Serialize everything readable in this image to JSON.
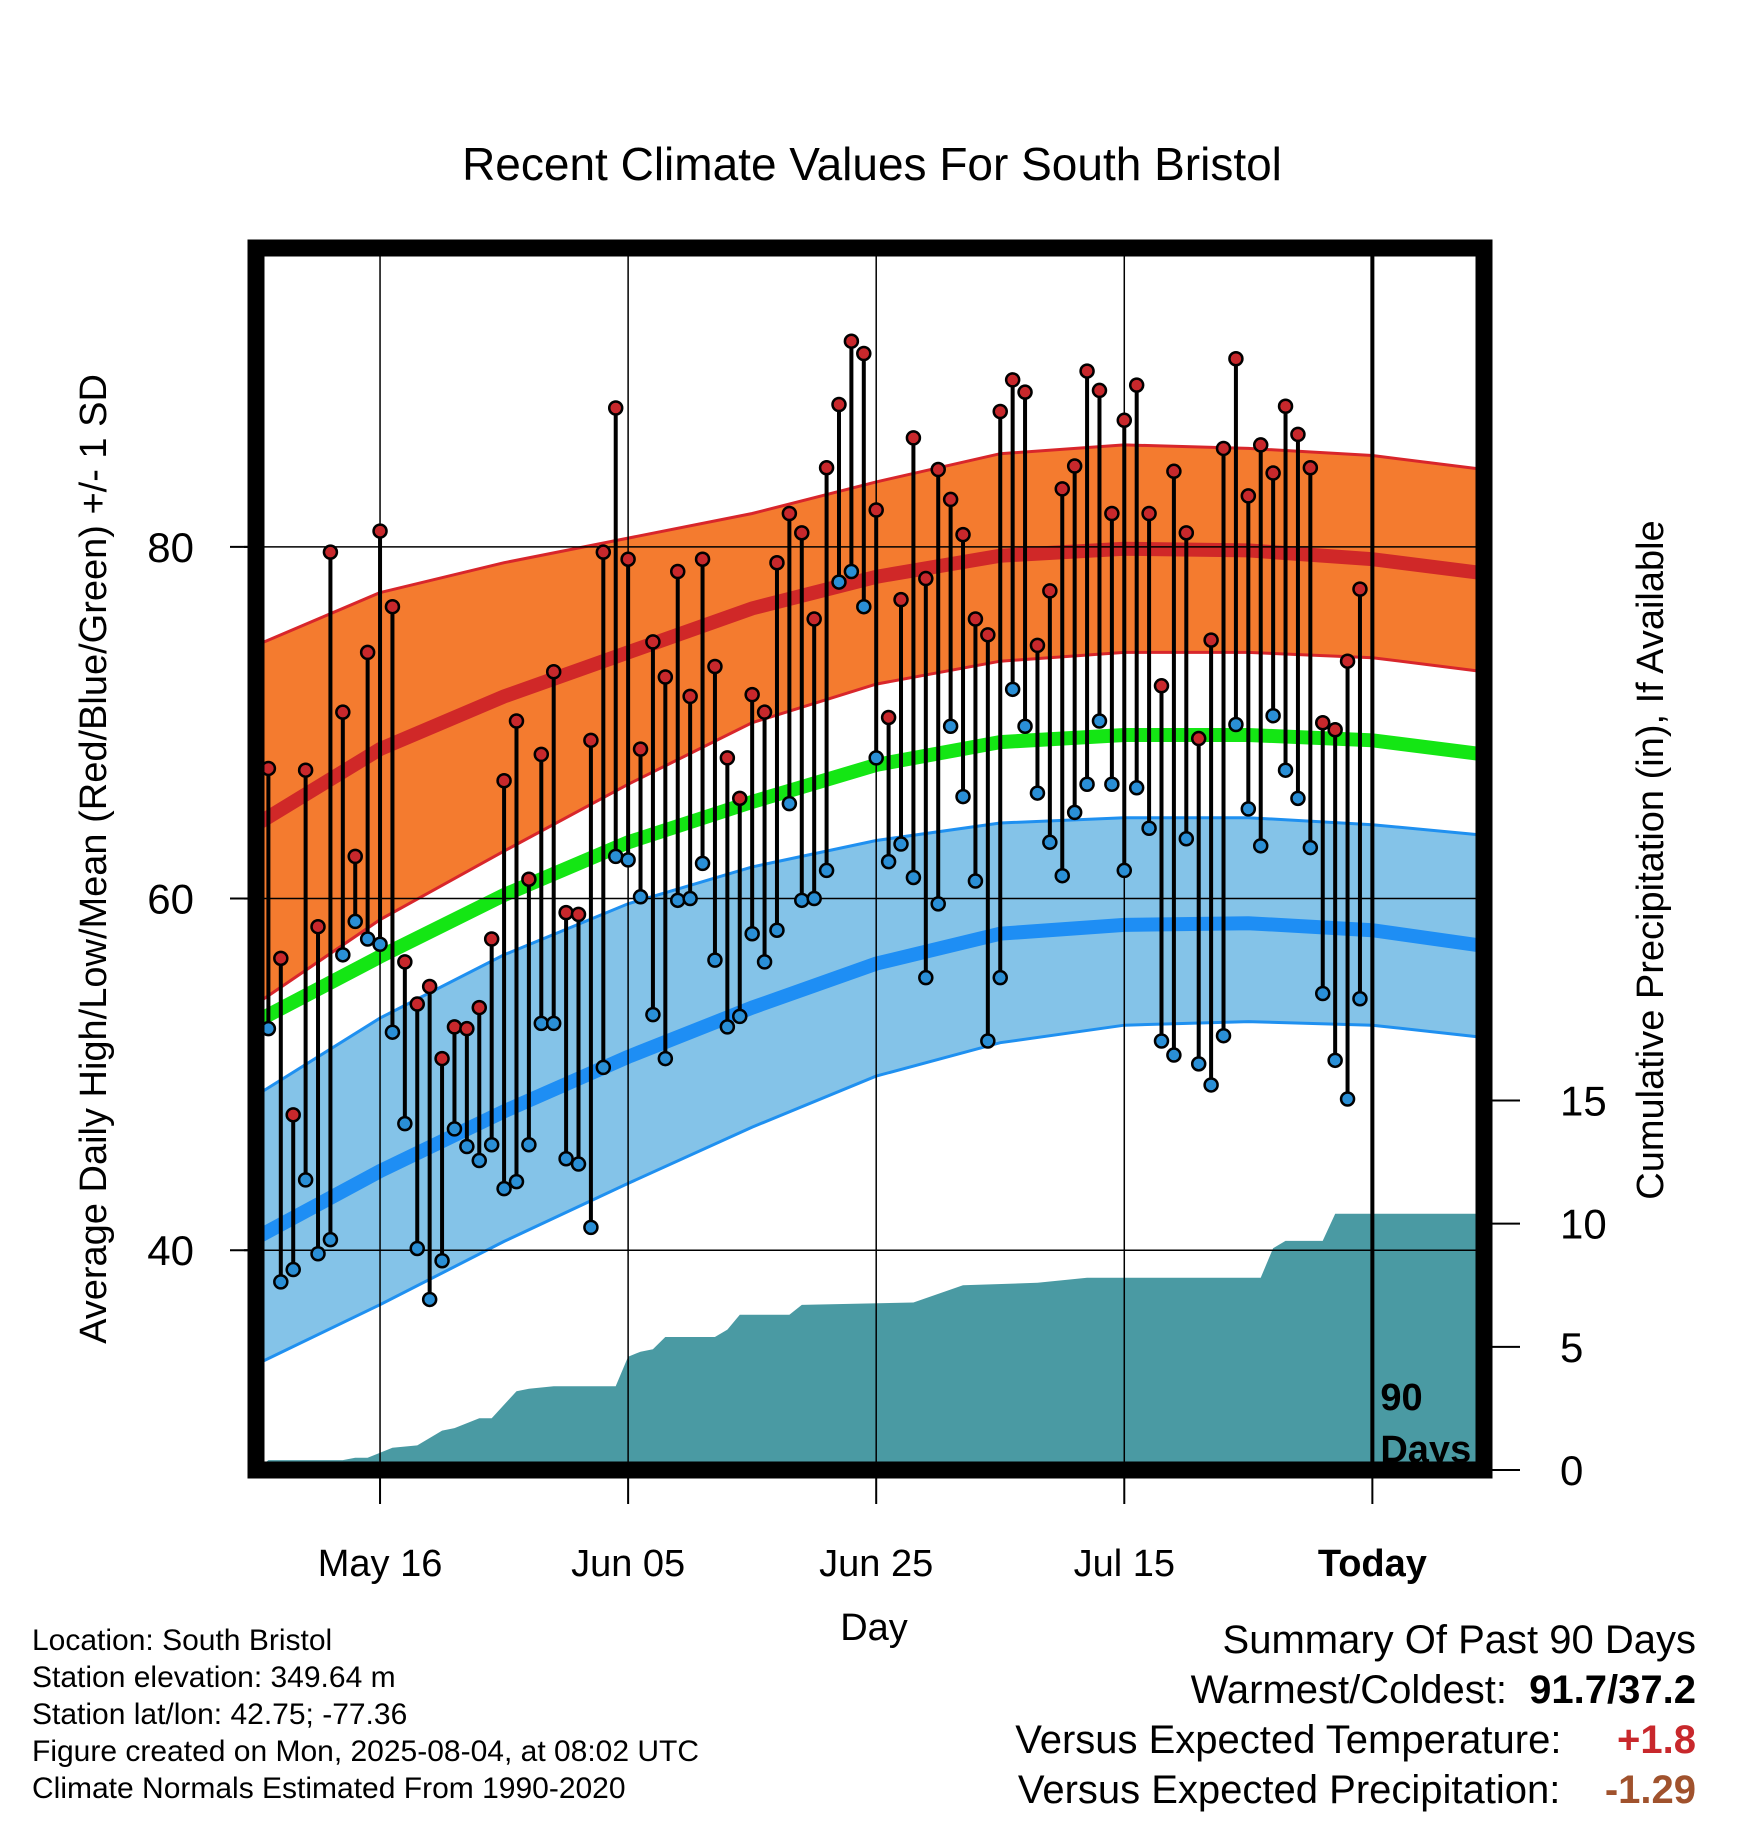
{
  "chart_data": {
    "type": "line",
    "title": "Recent Climate Values For South Bristol",
    "xlabel": "Day",
    "ylabel": "Average Daily High/Low/Mean (Red/Blue/Green) +/- 1 SD",
    "y2label": "Cumulative Precipitation (in), If Available",
    "ylim": [
      27.5,
      97
    ],
    "y2lim": [
      0,
      49.6
    ],
    "yticks": [
      40,
      60,
      80
    ],
    "y2ticks": [
      0,
      5,
      10,
      15
    ],
    "xlim": [
      "2025-05-06",
      "2025-08-13"
    ],
    "x_ticks": [
      {
        "date": "2025-05-16",
        "label": "May 16"
      },
      {
        "date": "2025-06-05",
        "label": "Jun 05"
      },
      {
        "date": "2025-06-25",
        "label": "Jun 25"
      },
      {
        "date": "2025-07-15",
        "label": "Jul 15"
      },
      {
        "date": "2025-08-04",
        "label": "Today"
      }
    ],
    "today": "2025-08-04",
    "today_label": [
      "90",
      "Days"
    ],
    "grid": true,
    "colors": {
      "high_band": "#f47b2f",
      "high_band_edge": "#d8262b",
      "high_mean": "#d02828",
      "low_band": "#84c3e8",
      "low_band_edge": "#1f90f0",
      "low_mean": "#1e8ef4",
      "mean": "#14e614",
      "precip": "#4a9aa3",
      "high_marker": "#c8282c",
      "low_marker": "#2a8fd6"
    },
    "normals": {
      "dates": [
        "2025-05-06",
        "2025-05-16",
        "2025-05-26",
        "2025-06-05",
        "2025-06-15",
        "2025-06-25",
        "2025-07-05",
        "2025-07-15",
        "2025-07-25",
        "2025-08-04",
        "2025-08-13"
      ],
      "high_mean": [
        64.2,
        68.5,
        71.5,
        74.0,
        76.5,
        78.3,
        79.5,
        79.9,
        79.8,
        79.3,
        78.5
      ],
      "high_sd_upper": [
        74.4,
        77.4,
        79.1,
        80.5,
        81.9,
        83.7,
        85.3,
        85.8,
        85.6,
        85.2,
        84.4
      ],
      "high_sd_lower": [
        54.0,
        58.8,
        62.7,
        66.5,
        70.0,
        72.2,
        73.5,
        74.0,
        74.0,
        73.7,
        72.9
      ],
      "mean": [
        53.0,
        56.7,
        60.2,
        63.2,
        65.5,
        67.6,
        68.9,
        69.3,
        69.3,
        69.0,
        68.2
      ],
      "low_mean": [
        40.7,
        44.5,
        47.9,
        51.0,
        53.8,
        56.3,
        58.0,
        58.5,
        58.6,
        58.2,
        57.3
      ],
      "low_sd_upper": [
        48.8,
        53.2,
        56.8,
        59.7,
        61.8,
        63.3,
        64.3,
        64.6,
        64.6,
        64.2,
        63.6
      ],
      "low_sd_lower": [
        33.5,
        36.9,
        40.5,
        43.8,
        47.0,
        49.9,
        51.8,
        52.8,
        53.0,
        52.8,
        52.1
      ]
    },
    "series": [
      {
        "name": "High",
        "values": [
          70.9,
          67.4,
          56.6,
          47.7,
          67.3,
          58.4,
          79.7,
          70.6,
          62.4,
          74.0,
          80.9,
          76.6,
          56.4,
          54.0,
          55.0,
          50.9,
          52.7,
          52.6,
          53.8,
          57.7,
          66.7,
          70.1,
          61.1,
          68.2,
          72.9,
          59.2,
          59.1,
          69.0,
          79.7,
          87.9,
          79.3,
          68.5,
          74.6,
          72.6,
          78.6,
          71.5,
          79.3,
          73.2,
          68.0,
          65.7,
          71.6,
          70.6,
          79.1,
          81.9,
          80.8,
          75.9,
          84.5,
          88.1,
          91.7,
          91.0,
          82.1,
          70.3,
          77.0,
          86.2,
          78.2,
          84.4,
          82.7,
          80.7,
          75.9,
          75.0,
          87.7,
          89.5,
          88.8,
          74.4,
          77.5,
          83.3,
          84.6,
          90.0,
          88.9,
          81.9,
          87.2,
          89.2,
          81.9,
          72.1,
          84.3,
          80.8,
          69.1,
          74.7,
          85.6,
          90.7,
          82.9,
          85.8,
          84.2,
          88.0,
          86.4,
          84.5,
          70.0,
          69.6,
          73.5,
          77.6
        ]
      },
      {
        "name": "Low",
        "values": [
          52.1,
          52.6,
          38.2,
          38.9,
          44.0,
          39.8,
          40.6,
          56.8,
          58.7,
          57.7,
          57.4,
          52.4,
          47.2,
          40.1,
          37.2,
          39.4,
          46.9,
          45.9,
          45.1,
          46.0,
          43.5,
          43.9,
          46.0,
          52.9,
          52.9,
          45.2,
          44.9,
          41.3,
          50.4,
          62.4,
          62.2,
          60.1,
          53.4,
          50.9,
          59.9,
          60.0,
          62.0,
          56.5,
          52.7,
          53.3,
          58.0,
          56.4,
          58.2,
          65.4,
          59.9,
          60.0,
          61.6,
          78.0,
          78.6,
          76.6,
          68.0,
          62.1,
          63.1,
          61.2,
          55.5,
          59.7,
          69.8,
          65.8,
          61.0,
          51.9,
          55.5,
          71.9,
          69.8,
          66.0,
          63.2,
          61.3,
          64.9,
          66.5,
          70.1,
          66.5,
          61.6,
          66.3,
          64.0,
          51.9,
          51.1,
          63.4,
          50.6,
          49.4,
          52.2,
          69.9,
          65.1,
          63.0,
          70.4,
          67.3,
          65.7,
          62.9,
          54.6,
          50.8,
          48.6,
          54.3
        ]
      },
      {
        "name": "Cumulative Precipitation",
        "x": [
          "2025-05-06",
          "2025-05-07",
          "2025-05-13",
          "2025-05-14",
          "2025-05-15",
          "2025-05-17",
          "2025-05-19",
          "2025-05-21",
          "2025-05-22",
          "2025-05-24",
          "2025-05-25",
          "2025-05-27",
          "2025-05-28",
          "2025-05-30",
          "2025-06-04",
          "2025-06-05",
          "2025-06-06",
          "2025-06-07",
          "2025-06-08",
          "2025-06-12",
          "2025-06-13",
          "2025-06-14",
          "2025-06-18",
          "2025-06-19",
          "2025-06-28",
          "2025-07-02",
          "2025-07-08",
          "2025-07-12",
          "2025-07-26",
          "2025-07-27",
          "2025-07-28",
          "2025-07-31",
          "2025-08-01",
          "2025-08-13"
        ],
        "values": [
          0.0,
          0.4,
          0.4,
          0.5,
          0.5,
          0.9,
          1.0,
          1.6,
          1.7,
          2.1,
          2.1,
          3.2,
          3.3,
          3.4,
          3.4,
          4.6,
          4.8,
          4.9,
          5.4,
          5.4,
          5.7,
          6.3,
          6.3,
          6.7,
          6.8,
          7.5,
          7.6,
          7.8,
          7.8,
          9.0,
          9.3,
          9.3,
          10.4,
          10.4
        ]
      }
    ]
  },
  "footer": {
    "location": "Location: South Bristol",
    "elevation": "Station elevation: 349.64 m",
    "latlon": "Station lat/lon: 42.75; -77.36",
    "created": "Figure created on Mon, 2025-08-04, at 08:02 UTC",
    "normals": "Climate Normals Estimated From 1990-2020"
  },
  "summary": {
    "title": "Summary Of Past 90 Days",
    "warmest_coldest_label": "Warmest/Coldest:",
    "warmest_coldest_value": "91.7/37.2",
    "temp_label": "Versus Expected Temperature:",
    "temp_value": "+1.8",
    "temp_color": "#c8282c",
    "precip_label": "Versus Expected Precipitation:",
    "precip_value": "-1.29",
    "precip_color": "#a0522d"
  }
}
